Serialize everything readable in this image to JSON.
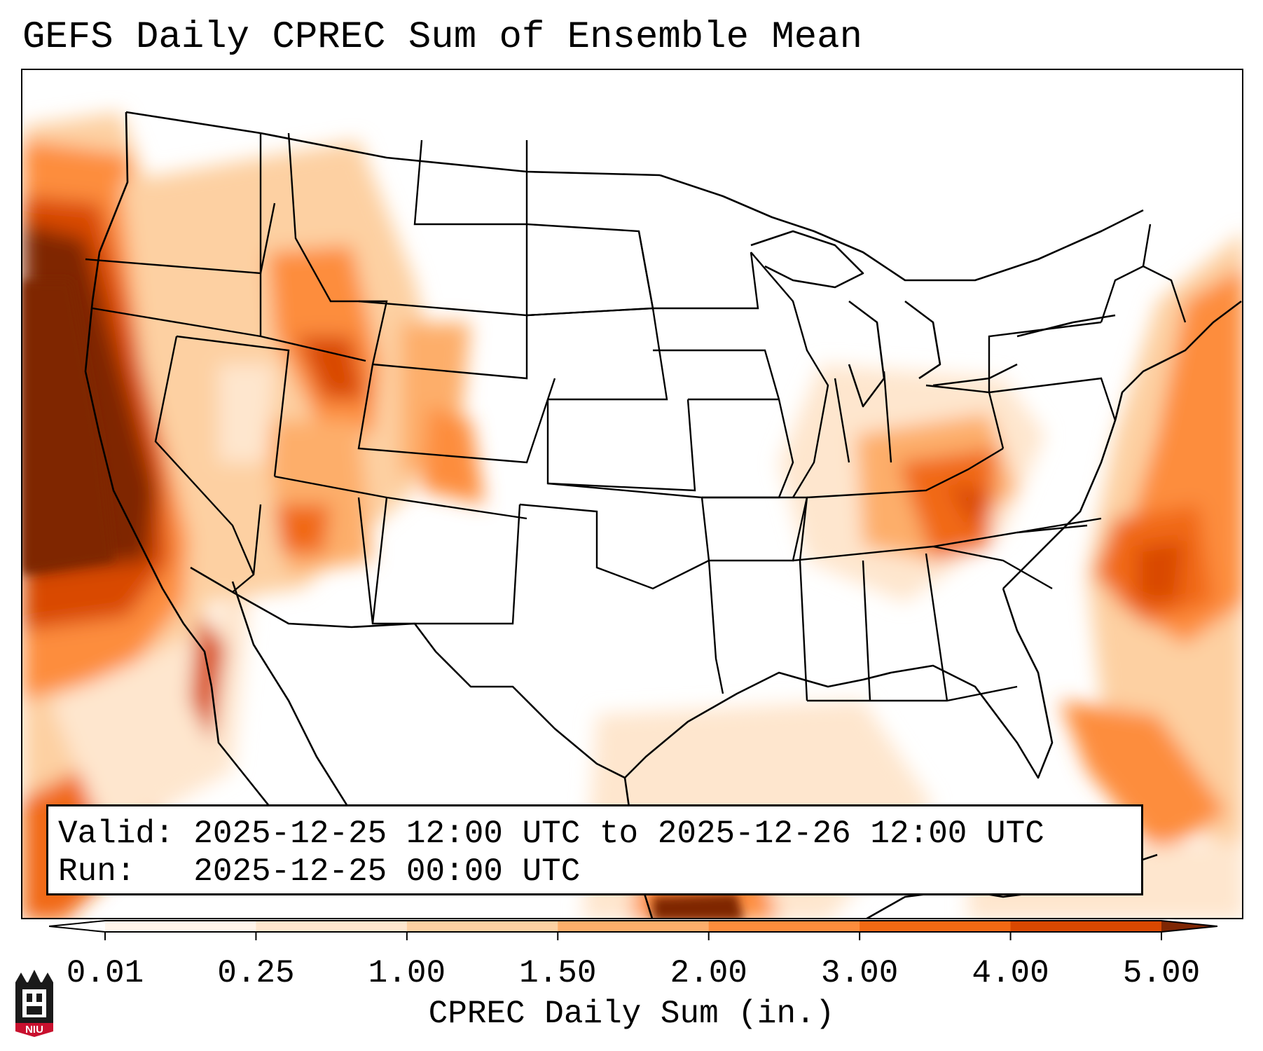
{
  "title": "GEFS Daily CPREC Sum of Ensemble Mean",
  "info": {
    "valid_line": "Valid: 2025-12-25 12:00 UTC to 2025-12-26 12:00 UTC",
    "run_line": "Run:   2025-12-25 00:00 UTC"
  },
  "colorbar": {
    "label": "CPREC Daily Sum (in.)",
    "ticks": [
      "0.01",
      "0.25",
      "1.00",
      "1.50",
      "2.00",
      "3.00",
      "4.00",
      "5.00"
    ],
    "colors": [
      "#fff5eb",
      "#fee6ce",
      "#fdd0a2",
      "#fdae6b",
      "#fd8d3c",
      "#f16913",
      "#d94801",
      "#7f2704"
    ],
    "under_color": "#ffffff",
    "over_color": "#7f2704"
  },
  "logo": {
    "text": "NIU"
  }
}
